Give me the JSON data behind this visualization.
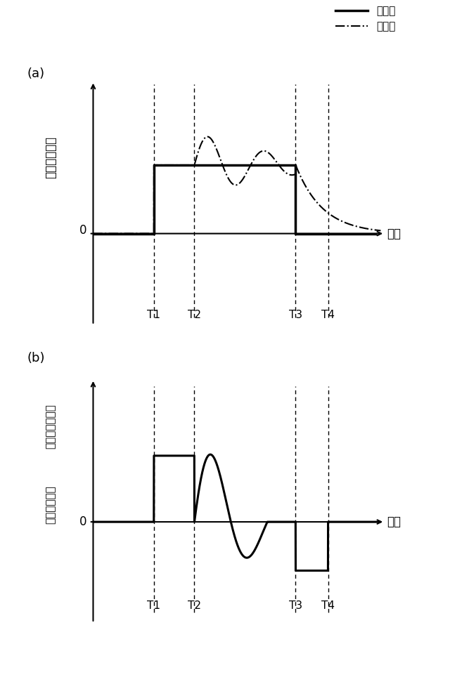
{
  "panel_a": {
    "label": "(a)",
    "ylabel": "回転角加速度",
    "xlabel": "時間",
    "T1": 1.5,
    "T2": 2.5,
    "T3": 5.0,
    "T4": 5.8,
    "step_level": 0.45,
    "legend_target": "目標値",
    "legend_measured": "実測値"
  },
  "panel_b": {
    "label": "(b)",
    "ylabel_line1": "回転角加速度に",
    "ylabel_line2": "対する補正量",
    "xlabel": "時間",
    "T1": 1.5,
    "T2": 2.5,
    "T3": 5.0,
    "T4": 5.8,
    "step_level": 0.38,
    "neg_step_level": -0.28
  }
}
